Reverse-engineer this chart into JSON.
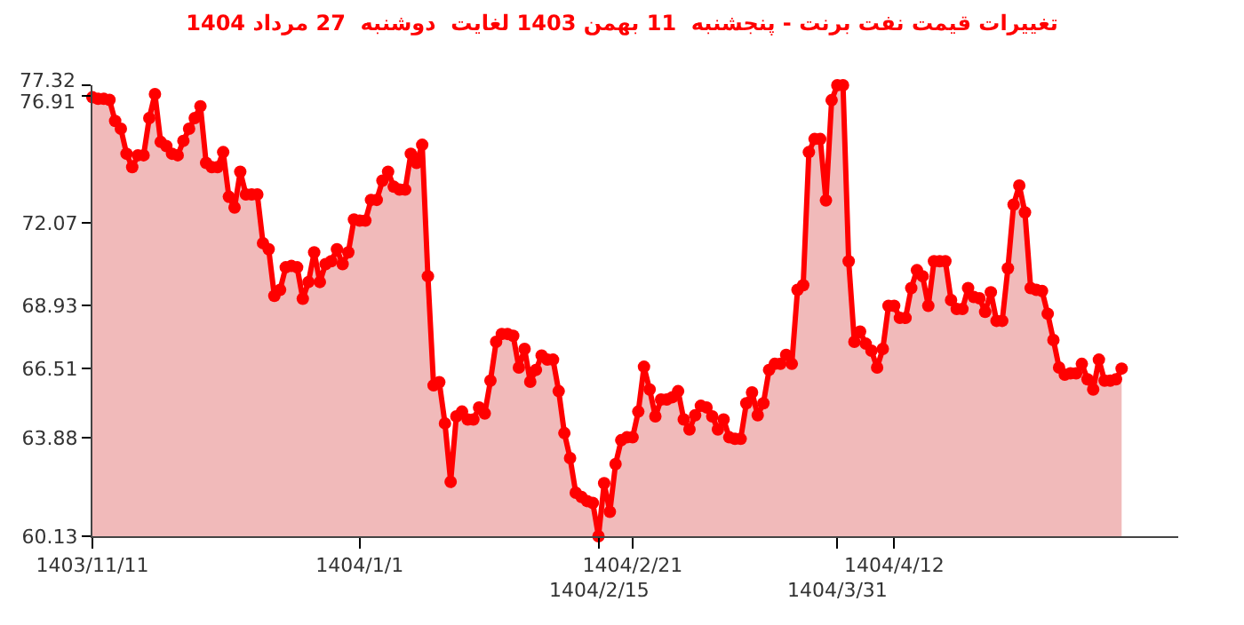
{
  "chart_data": {
    "type": "area",
    "title": "تغییرات قیمت نفت برنت - پنجشنبه  11 بهمن 1403 لغایت  دوشنبه  27 مرداد 1404",
    "categories": [
      "1403/11/11",
      null,
      null,
      null,
      null,
      null,
      null,
      null,
      null,
      null,
      null,
      null,
      null,
      null,
      null,
      null,
      null,
      null,
      null,
      null,
      null,
      null,
      null,
      null,
      null,
      null,
      null,
      null,
      null,
      null,
      null,
      null,
      null,
      null,
      null,
      null,
      null,
      null,
      null,
      null,
      null,
      null,
      null,
      null,
      null,
      null,
      null,
      "1404/1/1",
      null,
      null,
      null,
      null,
      null,
      null,
      null,
      null,
      null,
      null,
      null,
      null,
      null,
      null,
      null,
      null,
      null,
      null,
      null,
      null,
      null,
      null,
      null,
      null,
      null,
      null,
      null,
      null,
      null,
      null,
      null,
      null,
      null,
      null,
      null,
      null,
      null,
      null,
      null,
      null,
      null,
      "1404/2/15",
      null,
      null,
      null,
      null,
      null,
      "1404/2/21",
      null,
      null,
      null,
      null,
      null,
      null,
      null,
      null,
      null,
      null,
      null,
      null,
      null,
      null,
      null,
      null,
      null,
      null,
      null,
      null,
      null,
      null,
      null,
      null,
      null,
      null,
      null,
      null,
      null,
      null,
      null,
      null,
      null,
      null,
      null,
      "1404/3/31",
      null,
      null,
      null,
      null,
      null,
      null,
      null,
      null,
      null,
      "1404/4/12",
      null,
      null,
      null,
      null,
      null,
      null,
      null,
      null,
      null,
      null,
      null,
      null,
      null,
      null,
      null,
      null,
      null,
      null,
      null,
      null,
      null,
      null,
      null,
      null,
      null,
      null,
      null,
      null,
      null,
      null,
      null,
      null,
      null,
      null,
      null,
      null,
      null,
      null,
      null,
      null
    ],
    "series": [
      {
        "color": "#ff0000",
        "values": [
          76.86,
          76.8,
          76.8,
          76.76,
          75.96,
          75.66,
          74.71,
          74.2,
          74.65,
          74.65,
          76.07,
          76.98,
          75.16,
          75.0,
          74.71,
          74.65,
          75.2,
          75.66,
          76.07,
          76.52,
          74.36,
          74.2,
          74.2,
          74.77,
          73.07,
          72.66,
          74.02,
          73.16,
          73.16,
          73.16,
          71.3,
          71.07,
          69.29,
          69.52,
          70.38,
          70.43,
          70.38,
          69.18,
          69.82,
          70.95,
          69.82,
          70.5,
          70.61,
          71.07,
          70.5,
          70.95,
          72.2,
          72.16,
          72.16,
          72.95,
          72.95,
          73.68,
          74.02,
          73.45,
          73.34,
          73.34,
          74.71,
          74.36,
          75.05,
          70.04,
          65.88,
          66.0,
          64.43,
          62.2,
          64.7,
          64.88,
          64.58,
          64.58,
          65.04,
          64.81,
          66.06,
          67.54,
          67.84,
          67.84,
          67.77,
          66.56,
          67.27,
          66.02,
          66.47,
          67.02,
          66.86,
          66.86,
          65.66,
          64.06,
          63.11,
          61.79,
          61.63,
          61.47,
          61.4,
          60.13,
          62.15,
          61.06,
          62.88,
          63.79,
          63.9,
          63.9,
          64.88,
          66.59,
          65.72,
          64.7,
          65.34,
          65.34,
          65.43,
          65.66,
          64.58,
          64.2,
          64.74,
          65.1,
          65.04,
          64.7,
          64.2,
          64.58,
          63.9,
          63.84,
          63.84,
          65.2,
          65.61,
          64.74,
          65.2,
          66.47,
          66.7,
          66.7,
          67.04,
          66.7,
          69.52,
          69.7,
          74.77,
          75.27,
          75.27,
          72.93,
          76.75,
          77.32,
          77.32,
          70.61,
          67.54,
          67.93,
          67.47,
          67.2,
          66.56,
          67.27,
          68.91,
          68.91,
          68.45,
          68.45,
          69.59,
          70.27,
          70.04,
          68.91,
          70.61,
          70.61,
          70.61,
          69.13,
          68.79,
          68.79,
          69.59,
          69.25,
          69.2,
          68.68,
          69.43,
          68.34,
          68.34,
          70.34,
          72.77,
          73.5,
          72.47,
          69.59,
          69.52,
          69.48,
          68.61,
          67.61,
          66.56,
          66.29,
          66.34,
          66.34,
          66.7,
          66.11,
          65.72,
          66.86,
          66.06,
          66.06,
          66.11,
          66.52
        ]
      }
    ],
    "ylim": [
      60.13,
      77.32
    ],
    "yticks": [
      60.13,
      63.88,
      66.51,
      68.93,
      72.07,
      76.91,
      77.32
    ],
    "marker": "circle"
  }
}
